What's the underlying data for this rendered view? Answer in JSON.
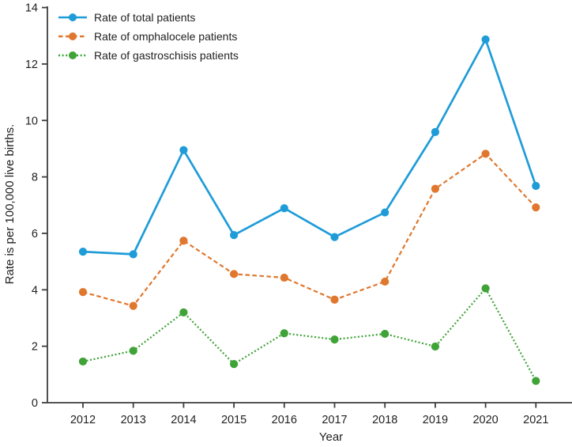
{
  "figure": {
    "background_color": "#ffffff",
    "spine_color": "#3d3d3d",
    "text_color": "#1f1f1f"
  },
  "chart_data": {
    "type": "line",
    "title": "",
    "xlabel": "Year",
    "ylabel": "Rate is per 100,000 live births.",
    "x": [
      2012,
      2013,
      2014,
      2015,
      2016,
      2017,
      2018,
      2019,
      2020,
      2021
    ],
    "x_tick_labels": [
      "2012",
      "2013",
      "2014",
      "2015",
      "2016",
      "2017",
      "2018",
      "2019",
      "2020",
      "2021"
    ],
    "ylim": [
      0,
      14
    ],
    "y_ticks": [
      0,
      2,
      4,
      6,
      8,
      10,
      12,
      14
    ],
    "grid": false,
    "legend_position": "upper-left",
    "legend_border": false,
    "series": [
      {
        "name": "Rate of total patients",
        "color": "#1f9cd8",
        "line_style": "solid",
        "marker": "circle",
        "values": [
          5.35,
          5.26,
          8.95,
          5.94,
          6.89,
          5.87,
          6.74,
          9.59,
          12.87,
          7.68
        ]
      },
      {
        "name": "Rate of omphalocele patients",
        "color": "#e0772e",
        "line_style": "dashed",
        "marker": "circle",
        "values": [
          3.92,
          3.43,
          5.74,
          4.56,
          4.43,
          3.65,
          4.29,
          7.58,
          8.82,
          6.92
        ]
      },
      {
        "name": "Rate of gastroschisis patients",
        "color": "#3fa337",
        "line_style": "dotted",
        "marker": "circle",
        "values": [
          1.46,
          1.84,
          3.2,
          1.37,
          2.46,
          2.24,
          2.44,
          1.99,
          4.05,
          0.77
        ]
      }
    ]
  }
}
